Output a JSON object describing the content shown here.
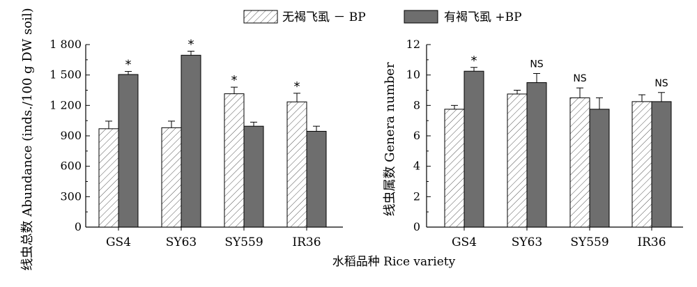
{
  "legend": {
    "items": [
      {
        "label": "无褐飞虱  － BP",
        "pattern": "hatch"
      },
      {
        "label": "有褐飞虱   +BP",
        "pattern": "solid"
      }
    ]
  },
  "xlabel": "水稻品种  Rice variety",
  "chart_data": [
    {
      "type": "bar",
      "categories": [
        "GS4",
        "SY63",
        "SY559",
        "IR36"
      ],
      "series": [
        {
          "name": "无褐飞虱  － BP",
          "values": [
            970,
            980,
            1315,
            1235
          ],
          "errors": [
            75,
            65,
            65,
            85
          ]
        },
        {
          "name": "有褐飞虱   +BP",
          "values": [
            1505,
            1695,
            995,
            945
          ],
          "errors": [
            30,
            40,
            40,
            50
          ]
        }
      ],
      "significance": [
        "*",
        "*",
        "*",
        "*"
      ],
      "ylabel_cn": "线虫总数",
      "ylabel_en": "Abundance (inds./100 g DW soil)",
      "ylim": [
        0,
        1800
      ],
      "yticks": [
        0,
        300,
        600,
        900,
        1200,
        1500,
        1800
      ],
      "ytick_labels": [
        "0",
        "300",
        "600",
        "900",
        "1 200",
        "1 500",
        "1 800"
      ]
    },
    {
      "type": "bar",
      "categories": [
        "GS4",
        "SY63",
        "SY559",
        "IR36"
      ],
      "series": [
        {
          "name": "无褐飞虱  － BP",
          "values": [
            7.75,
            8.75,
            8.5,
            8.25
          ],
          "errors": [
            0.25,
            0.25,
            0.65,
            0.45
          ]
        },
        {
          "name": "有褐飞虱   +BP",
          "values": [
            10.25,
            9.5,
            7.75,
            8.25
          ],
          "errors": [
            0.25,
            0.6,
            0.75,
            0.6
          ]
        }
      ],
      "significance": [
        "*",
        "NS",
        "NS",
        "NS"
      ],
      "ylabel_cn": "线虫属数",
      "ylabel_en": "Genera number",
      "ylim": [
        0,
        12
      ],
      "yticks": [
        0,
        2,
        4,
        6,
        8,
        10,
        12
      ],
      "ytick_labels": [
        "0",
        "2",
        "4",
        "6",
        "8",
        "10",
        "12"
      ]
    }
  ],
  "colors": {
    "solid_bar": "#6e6e6e",
    "axis": "#000000",
    "hatch": "#555555"
  }
}
